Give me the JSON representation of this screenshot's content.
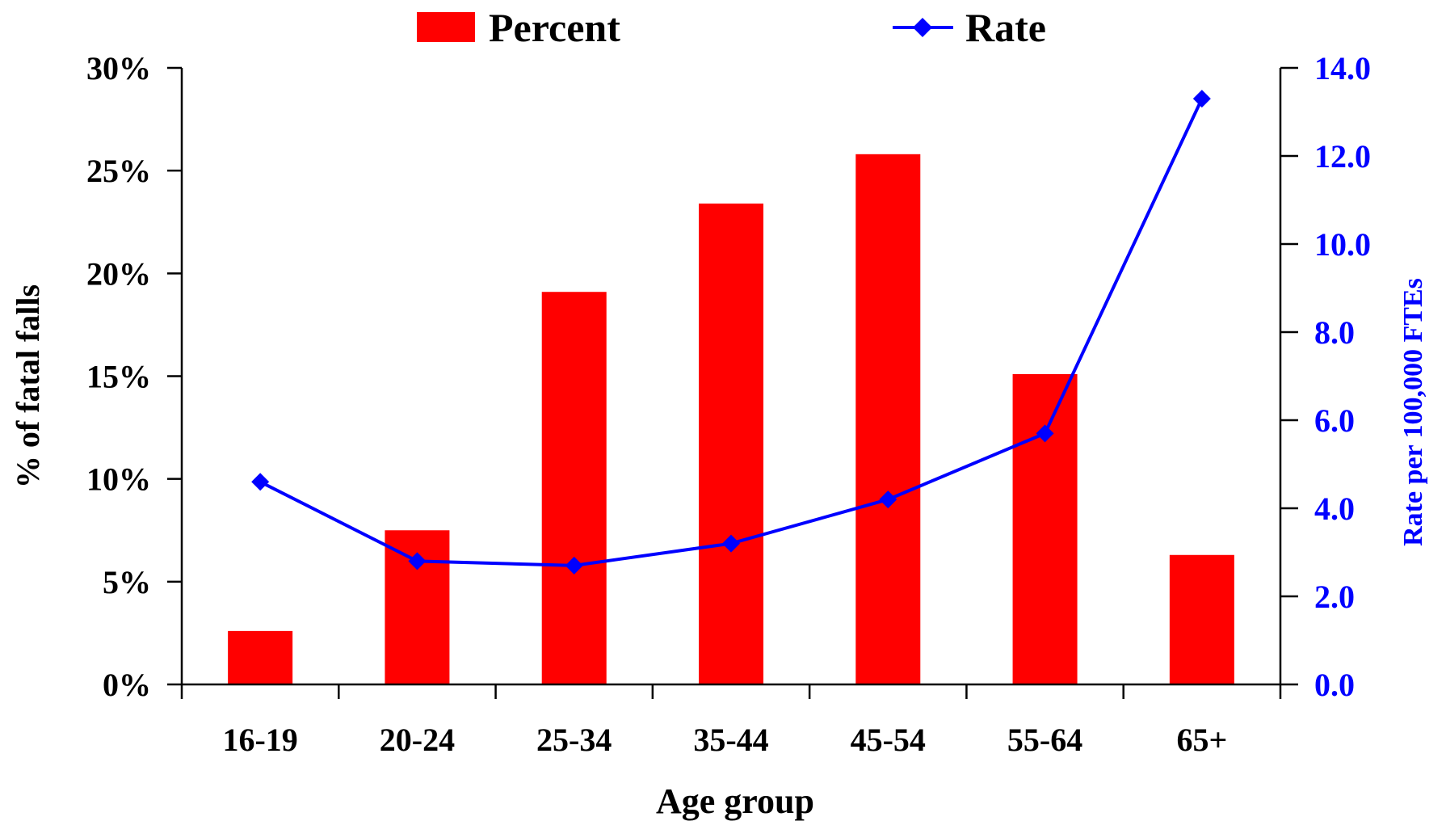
{
  "chart_data": {
    "type": "bar",
    "categories": [
      "16-19",
      "20-24",
      "25-34",
      "35-44",
      "45-54",
      "55-64",
      "65+"
    ],
    "series": [
      {
        "name": "Percent",
        "type": "bar",
        "axis": "left",
        "color": "#FF0000",
        "values": [
          2.6,
          7.5,
          19.1,
          23.4,
          25.8,
          15.1,
          6.3
        ]
      },
      {
        "name": "Rate",
        "type": "line",
        "axis": "right",
        "color": "#0000FF",
        "marker": "diamond",
        "values": [
          4.6,
          2.8,
          2.7,
          3.2,
          4.2,
          5.7,
          13.3
        ]
      }
    ],
    "xlabel": "Age group",
    "ylabel": "% of fatal falls",
    "y2label": "Rate per 100,000 FTEs",
    "ylim": [
      0,
      30
    ],
    "y2lim": [
      0,
      14
    ],
    "yticks": [
      "0%",
      "5%",
      "10%",
      "15%",
      "20%",
      "25%",
      "30%"
    ],
    "y2ticks": [
      "0.0",
      "2.0",
      "4.0",
      "6.0",
      "8.0",
      "10.0",
      "12.0",
      "14.0"
    ],
    "grid": false,
    "legend_position": "top-center"
  }
}
